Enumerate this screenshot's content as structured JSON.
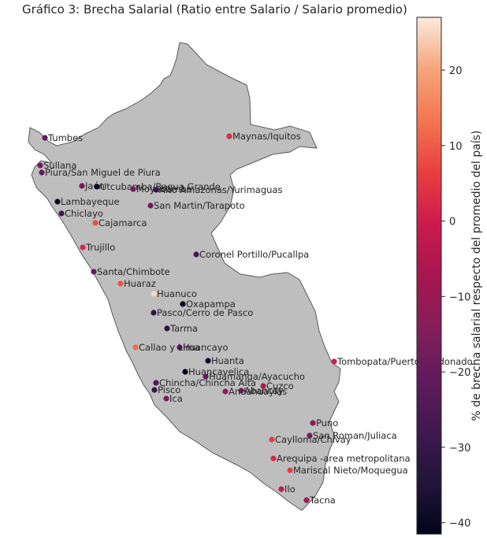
{
  "title": "Gráfico 3: Brecha Salarial (Ratio entre Salario / Salario promedio)",
  "colorbar": {
    "label": "% de brecha salarial respecto del promedio del país)",
    "min": -41.5,
    "max": 27,
    "ticks": [
      -40,
      -30,
      -20,
      -10,
      0,
      10,
      20
    ]
  },
  "colors": {
    "land": "#bebebe",
    "border": "#5a5a5a",
    "text": "#262626"
  },
  "cities": [
    {
      "name": "Maynas/Iquitos",
      "value": 3
    },
    {
      "name": "Tumbes",
      "value": -20
    },
    {
      "name": "Sullana",
      "value": -18
    },
    {
      "name": "Piura/San Miguel de Piura",
      "value": -20
    },
    {
      "name": "Jaén",
      "value": -18
    },
    {
      "name": "Utcubamba/Bagua Grande",
      "value": -40
    },
    {
      "name": "Moyobamba",
      "value": -16
    },
    {
      "name": "Alto Amazonas/Yurimaguas",
      "value": -30
    },
    {
      "name": "Lambayeque",
      "value": -40
    },
    {
      "name": "San Martin/Tarapoto",
      "value": -17
    },
    {
      "name": "Chiclayo",
      "value": -28
    },
    {
      "name": "Cajamarca",
      "value": 8
    },
    {
      "name": "Trujillo",
      "value": 2
    },
    {
      "name": "Coronel Portillo/Pucallpa",
      "value": -27
    },
    {
      "name": "Santa/Chimbote",
      "value": -20
    },
    {
      "name": "Huaraz",
      "value": 9
    },
    {
      "name": "Huanuco",
      "value": 25
    },
    {
      "name": "Oxapampa",
      "value": -41
    },
    {
      "name": "Pasco/Cerro de Pasco",
      "value": -33
    },
    {
      "name": "Tarma",
      "value": -33
    },
    {
      "name": "Callao y Lima",
      "value": 12
    },
    {
      "name": "Huancayo",
      "value": -25
    },
    {
      "name": "Huanta",
      "value": -38
    },
    {
      "name": "Tombopata/Puerto Maldonado",
      "value": 0
    },
    {
      "name": "Huancavelica",
      "value": -41
    },
    {
      "name": "Huamanga/Ayacucho",
      "value": -20
    },
    {
      "name": "Chincha/Chincha Alta",
      "value": -25
    },
    {
      "name": "Cuzco",
      "value": -6
    },
    {
      "name": "Pisco",
      "value": -30
    },
    {
      "name": "Abancay",
      "value": -15
    },
    {
      "name": "Andahuaylas",
      "value": -12
    },
    {
      "name": "Ica",
      "value": -16
    },
    {
      "name": "Puno",
      "value": -12
    },
    {
      "name": "San Roman/Juliaca",
      "value": -17
    },
    {
      "name": "Caylloma/Chivay",
      "value": 6
    },
    {
      "name": "Arequipa -area metropolitana",
      "value": 2
    },
    {
      "name": "Mariscal Nieto/Moquegua",
      "value": 6
    },
    {
      "name": "Ilo",
      "value": -2
    },
    {
      "name": "Tacna",
      "value": -8
    }
  ]
}
